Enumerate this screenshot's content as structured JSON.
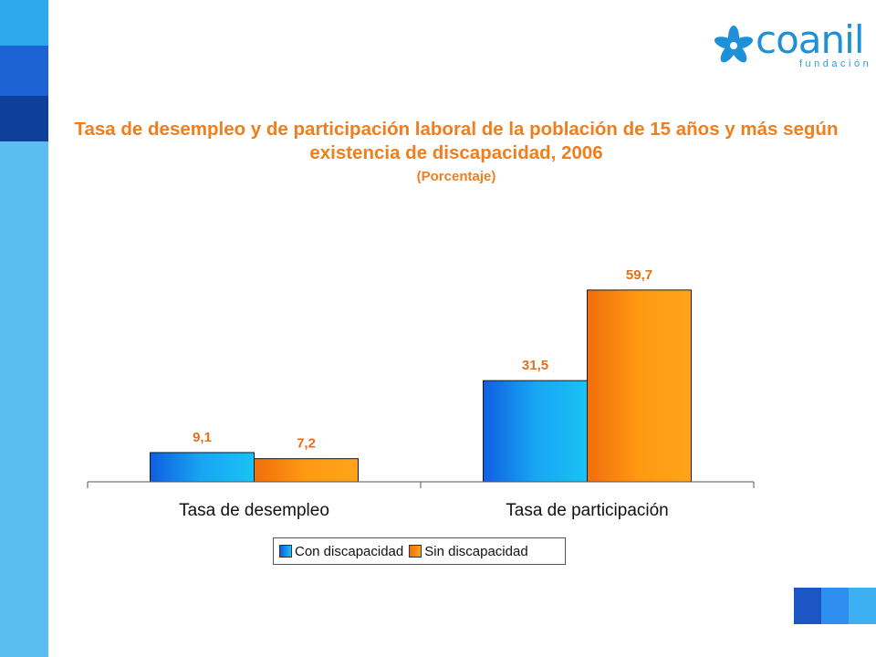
{
  "logo": {
    "word": "coanil",
    "sub": "fundación"
  },
  "chart_data": {
    "type": "bar",
    "title": "Tasa de desempleo y de participación laboral de la población de 15 años y más según existencia de discapacidad, 2006",
    "subtitle": "(Porcentaje)",
    "categories": [
      "Tasa de desempleo",
      "Tasa de participación"
    ],
    "series": [
      {
        "name": "Con discapacidad",
        "values": [
          9.1,
          31.5
        ],
        "labels": [
          "9,1",
          "31,5"
        ],
        "color": "#1aa3f0"
      },
      {
        "name": "Sin discapacidad",
        "values": [
          7.2,
          59.7
        ],
        "labels": [
          "7,2",
          "59,7"
        ],
        "color": "#f98a0f"
      }
    ],
    "ylim": [
      0,
      70
    ],
    "grid": false,
    "legend": "bottom",
    "label_color": "#e2701c"
  }
}
